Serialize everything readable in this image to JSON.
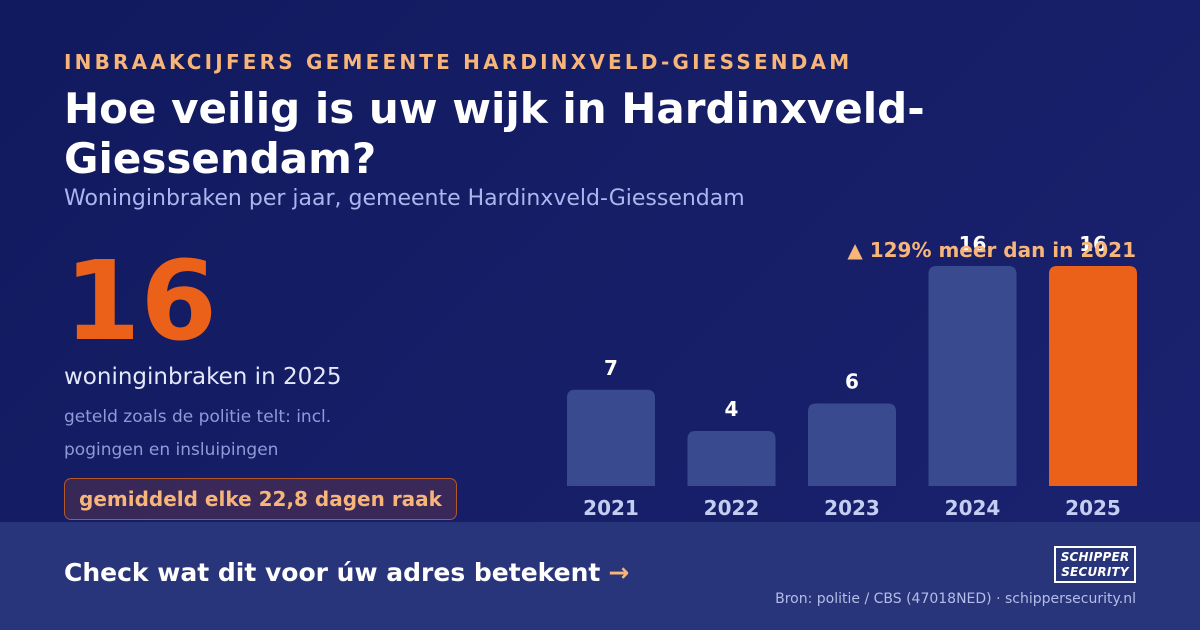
{
  "header": {
    "kicker": "INBRAAKCIJFERS GEMEENTE HARDINXVELD-GIESSENDAM",
    "title": "Hoe veilig is uw wijk in Hardinxveld-Giessendam?",
    "subtitle": "Woninginbraken per jaar, gemeente Hardinxveld-Giessendam"
  },
  "highlight": {
    "number": "16",
    "caption": "woninginbraken in 2025",
    "note": "geteld zoals de politie telt: incl. pogingen en insluipingen",
    "pill": "gemiddeld elke 22,8 dagen raak"
  },
  "change_text": "▲ 129% meer dan in 2021",
  "footer": {
    "cta": "Check wat dit voor úw adres betekent",
    "cta_arrow": "→",
    "source": "Bron: politie / CBS (47018NED) · schippersecurity.nl",
    "logo_line1": "SCHIPPER",
    "logo_line2": "SECURITY"
  },
  "colors": {
    "background": "#111a5e",
    "bar": "#3a4a8e",
    "bar_highlight": "#ec611a",
    "accent_text": "#f7b57a",
    "footer": "#29357a"
  },
  "chart_data": {
    "type": "bar",
    "categories": [
      "2021",
      "2022",
      "2023",
      "2024",
      "2025"
    ],
    "values": [
      7,
      4,
      6,
      16,
      16
    ],
    "highlight_index": 4,
    "ylim": [
      0,
      16
    ],
    "grid": false,
    "title": "",
    "xlabel": "",
    "ylabel": ""
  }
}
